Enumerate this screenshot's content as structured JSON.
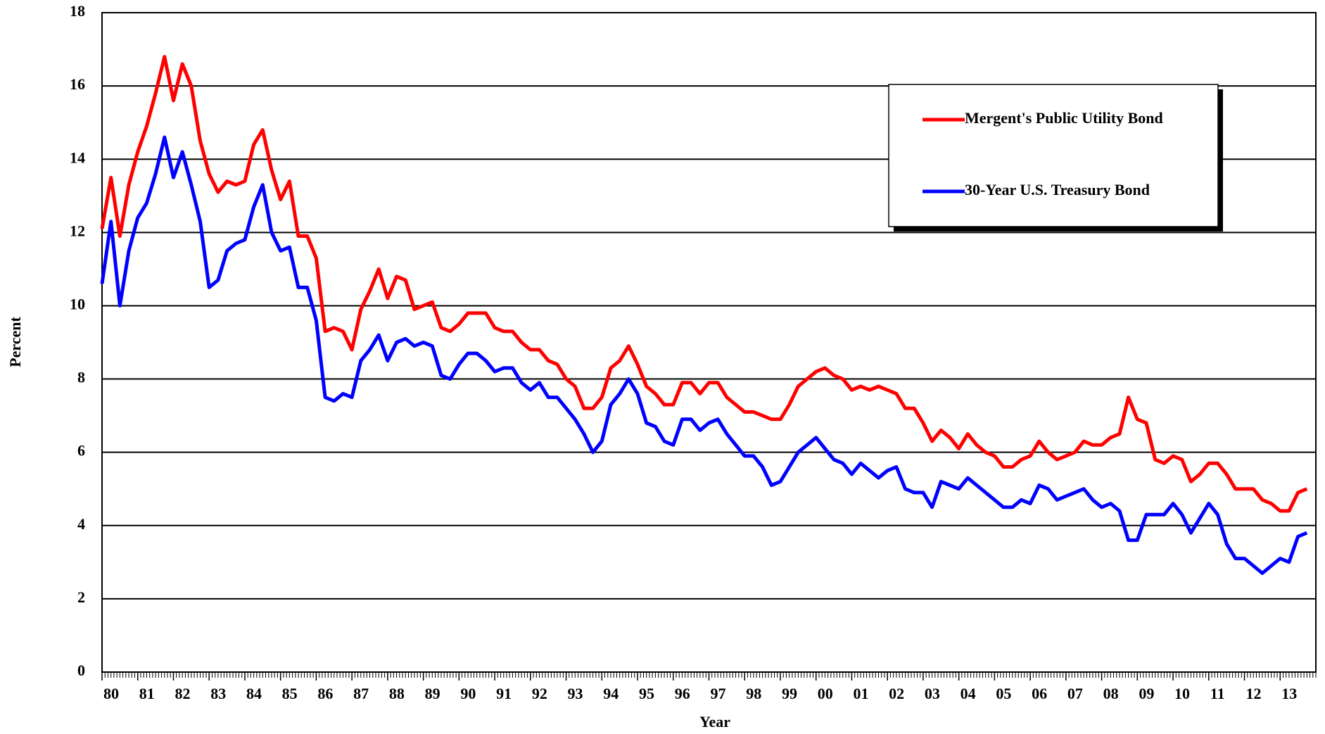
{
  "chart_data": {
    "type": "line",
    "xlabel": "Year",
    "ylabel": "Percent",
    "x": [
      1980,
      1980.25,
      1980.5,
      1980.75,
      1981,
      1981.25,
      1981.5,
      1981.75,
      1982,
      1982.25,
      1982.5,
      1982.75,
      1983,
      1983.25,
      1983.5,
      1983.75,
      1984,
      1984.25,
      1984.5,
      1984.75,
      1985,
      1985.25,
      1985.5,
      1985.75,
      1986,
      1986.25,
      1986.5,
      1986.75,
      1987,
      1987.25,
      1987.5,
      1987.75,
      1988,
      1988.25,
      1988.5,
      1988.75,
      1989,
      1989.25,
      1989.5,
      1989.75,
      1990,
      1990.25,
      1990.5,
      1990.75,
      1991,
      1991.25,
      1991.5,
      1991.75,
      1992,
      1992.25,
      1992.5,
      1992.75,
      1993,
      1993.25,
      1993.5,
      1993.75,
      1994,
      1994.25,
      1994.5,
      1994.75,
      1995,
      1995.25,
      1995.5,
      1995.75,
      1996,
      1996.25,
      1996.5,
      1996.75,
      1997,
      1997.25,
      1997.5,
      1997.75,
      1998,
      1998.25,
      1998.5,
      1998.75,
      1999,
      1999.25,
      1999.5,
      1999.75,
      2000,
      2000.25,
      2000.5,
      2000.75,
      2001,
      2001.25,
      2001.5,
      2001.75,
      2002,
      2002.25,
      2002.5,
      2002.75,
      2003,
      2003.25,
      2003.5,
      2003.75,
      2004,
      2004.25,
      2004.5,
      2004.75,
      2005,
      2005.25,
      2005.5,
      2005.75,
      2006,
      2006.25,
      2006.5,
      2006.75,
      2007,
      2007.25,
      2007.5,
      2007.75,
      2008,
      2008.25,
      2008.5,
      2008.75,
      2009,
      2009.25,
      2009.5,
      2009.75,
      2010,
      2010.25,
      2010.5,
      2010.75,
      2011,
      2011.25,
      2011.5,
      2011.75,
      2012,
      2012.25,
      2012.5,
      2012.75,
      2013,
      2013.25,
      2013.5,
      2013.75
    ],
    "series": [
      {
        "name": "Mergent's Public Utility Bond",
        "color": "#ff0000",
        "values": [
          12.1,
          13.5,
          11.9,
          13.3,
          14.2,
          14.9,
          15.8,
          16.8,
          15.6,
          16.6,
          16.0,
          14.5,
          13.6,
          13.1,
          13.4,
          13.3,
          13.4,
          14.4,
          14.8,
          13.7,
          12.9,
          13.4,
          11.9,
          11.9,
          11.3,
          9.3,
          9.4,
          9.3,
          8.8,
          9.9,
          10.4,
          11.0,
          10.2,
          10.8,
          10.7,
          9.9,
          10.0,
          10.1,
          9.4,
          9.3,
          9.5,
          9.8,
          9.8,
          9.8,
          9.4,
          9.3,
          9.3,
          9.0,
          8.8,
          8.8,
          8.5,
          8.4,
          8.0,
          7.8,
          7.2,
          7.2,
          7.5,
          8.3,
          8.5,
          8.9,
          8.4,
          7.8,
          7.6,
          7.3,
          7.3,
          7.9,
          7.9,
          7.6,
          7.9,
          7.9,
          7.5,
          7.3,
          7.1,
          7.1,
          7.0,
          6.9,
          6.9,
          7.3,
          7.8,
          8.0,
          8.2,
          8.3,
          8.1,
          8.0,
          7.7,
          7.8,
          7.7,
          7.8,
          7.7,
          7.6,
          7.2,
          7.2,
          6.8,
          6.3,
          6.6,
          6.4,
          6.1,
          6.5,
          6.2,
          6.0,
          5.9,
          5.6,
          5.6,
          5.8,
          5.9,
          6.3,
          6.0,
          5.8,
          5.9,
          6.0,
          6.3,
          6.2,
          6.2,
          6.4,
          6.5,
          7.5,
          6.9,
          6.8,
          5.8,
          5.7,
          5.9,
          5.8,
          5.2,
          5.4,
          5.7,
          5.7,
          5.4,
          5.0,
          5.0,
          5.0,
          4.7,
          4.6,
          4.4,
          4.4,
          4.9,
          5.0
        ]
      },
      {
        "name": "30-Year U.S. Treasury Bond",
        "color": "#0000ff",
        "values": [
          10.6,
          12.3,
          10.0,
          11.5,
          12.4,
          12.8,
          13.6,
          14.6,
          13.5,
          14.2,
          13.3,
          12.3,
          10.5,
          10.7,
          11.5,
          11.7,
          11.8,
          12.7,
          13.3,
          12.0,
          11.5,
          11.6,
          10.5,
          10.5,
          9.6,
          7.5,
          7.4,
          7.6,
          7.5,
          8.5,
          8.8,
          9.2,
          8.5,
          9.0,
          9.1,
          8.9,
          9.0,
          8.9,
          8.1,
          8.0,
          8.4,
          8.7,
          8.7,
          8.5,
          8.2,
          8.3,
          8.3,
          7.9,
          7.7,
          7.9,
          7.5,
          7.5,
          7.2,
          6.9,
          6.5,
          6.0,
          6.3,
          7.3,
          7.6,
          8.0,
          7.6,
          6.8,
          6.7,
          6.3,
          6.2,
          6.9,
          6.9,
          6.6,
          6.8,
          6.9,
          6.5,
          6.2,
          5.9,
          5.9,
          5.6,
          5.1,
          5.2,
          5.6,
          6.0,
          6.2,
          6.4,
          6.1,
          5.8,
          5.7,
          5.4,
          5.7,
          5.5,
          5.3,
          5.5,
          5.6,
          5.0,
          4.9,
          4.9,
          4.5,
          5.2,
          5.1,
          5.0,
          5.3,
          5.1,
          4.9,
          4.7,
          4.5,
          4.5,
          4.7,
          4.6,
          5.1,
          5.0,
          4.7,
          4.8,
          4.9,
          5.0,
          4.7,
          4.5,
          4.6,
          4.4,
          3.6,
          3.6,
          4.3,
          4.3,
          4.3,
          4.6,
          4.3,
          3.8,
          4.2,
          4.6,
          4.3,
          3.5,
          3.1,
          3.1,
          2.9,
          2.7,
          2.9,
          3.1,
          3.0,
          3.7,
          3.8
        ]
      }
    ],
    "xlim": [
      1980,
      2014
    ],
    "xticks": [
      {
        "value": 1980,
        "label": "80"
      },
      {
        "value": 1981,
        "label": "81"
      },
      {
        "value": 1982,
        "label": "82"
      },
      {
        "value": 1983,
        "label": "83"
      },
      {
        "value": 1984,
        "label": "84"
      },
      {
        "value": 1985,
        "label": "85"
      },
      {
        "value": 1986,
        "label": "86"
      },
      {
        "value": 1987,
        "label": "87"
      },
      {
        "value": 1988,
        "label": "88"
      },
      {
        "value": 1989,
        "label": "89"
      },
      {
        "value": 1990,
        "label": "90"
      },
      {
        "value": 1991,
        "label": "91"
      },
      {
        "value": 1992,
        "label": "92"
      },
      {
        "value": 1993,
        "label": "93"
      },
      {
        "value": 1994,
        "label": "94"
      },
      {
        "value": 1995,
        "label": "95"
      },
      {
        "value": 1996,
        "label": "96"
      },
      {
        "value": 1997,
        "label": "97"
      },
      {
        "value": 1998,
        "label": "98"
      },
      {
        "value": 1999,
        "label": "99"
      },
      {
        "value": 2000,
        "label": "00"
      },
      {
        "value": 2001,
        "label": "01"
      },
      {
        "value": 2002,
        "label": "02"
      },
      {
        "value": 2003,
        "label": "03"
      },
      {
        "value": 2004,
        "label": "04"
      },
      {
        "value": 2005,
        "label": "05"
      },
      {
        "value": 2006,
        "label": "06"
      },
      {
        "value": 2007,
        "label": "07"
      },
      {
        "value": 2008,
        "label": "08"
      },
      {
        "value": 2009,
        "label": "09"
      },
      {
        "value": 2010,
        "label": "10"
      },
      {
        "value": 2011,
        "label": "11"
      },
      {
        "value": 2012,
        "label": "12"
      },
      {
        "value": 2013,
        "label": "13"
      }
    ],
    "ylim": [
      0,
      18
    ],
    "yticks": [
      0,
      2,
      4,
      6,
      8,
      10,
      12,
      14,
      16,
      18
    ],
    "grid": true,
    "legend": "upper right"
  }
}
